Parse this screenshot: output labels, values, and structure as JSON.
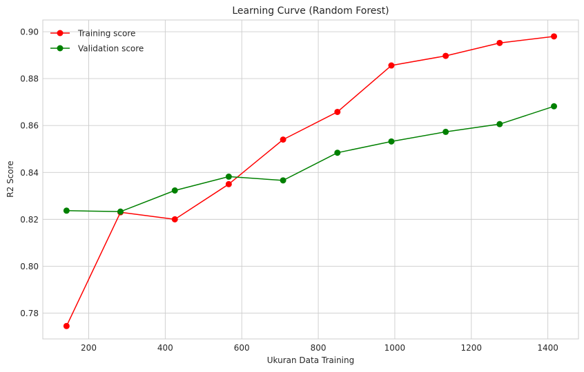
{
  "chart_data": {
    "type": "line",
    "title": "Learning Curve (Random Forest)",
    "xlabel": "Ukuran Data Training",
    "ylabel": "R2 Score",
    "xlim": [
      80,
      1480
    ],
    "ylim": [
      0.769,
      0.905
    ],
    "xticks": [
      200,
      400,
      600,
      800,
      1000,
      1200,
      1400
    ],
    "yticks": [
      0.78,
      0.8,
      0.82,
      0.84,
      0.86,
      0.88,
      0.9
    ],
    "grid": true,
    "legend_position": "top-left",
    "x": [
      142,
      283,
      425,
      566,
      708,
      850,
      991,
      1133,
      1274,
      1416
    ],
    "series": [
      {
        "name": "Training score",
        "color": "#ff0000",
        "values": [
          0.7745,
          0.823,
          0.82,
          0.835,
          0.854,
          0.8658,
          0.8856,
          0.8897,
          0.8952,
          0.898
        ]
      },
      {
        "name": "Validation score",
        "color": "#008000",
        "values": [
          0.8237,
          0.8233,
          0.8323,
          0.8382,
          0.8366,
          0.8484,
          0.8532,
          0.8573,
          0.8606,
          0.8682
        ]
      }
    ]
  }
}
